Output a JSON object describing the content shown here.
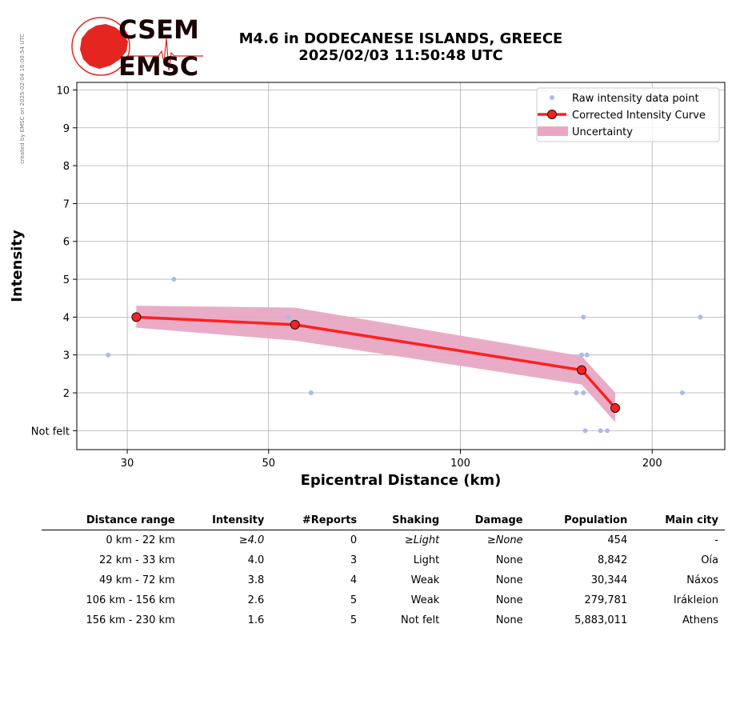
{
  "side_note": "created by EMSC on 2025-02-04 16:00:54 UTC",
  "logo": {
    "line1": "CSEM",
    "line2": "EMSC",
    "accent": "#e52620",
    "text_color": "#1a0505"
  },
  "title": {
    "line1": "M4.6 in DODECANESE ISLANDS, GREECE",
    "line2": "2025/02/03 11:50:48 UTC"
  },
  "chart_data": {
    "type": "scatter",
    "xlabel": "Epicentral Distance (km)",
    "ylabel": "Intensity",
    "x_scale": "log",
    "xlim": [
      25,
      260
    ],
    "ylim": [
      0.5,
      10.2
    ],
    "x_ticks": [
      30,
      50,
      100,
      200
    ],
    "y_ticks": [
      {
        "value": 1,
        "label": "Not felt"
      },
      {
        "value": 2,
        "label": "2"
      },
      {
        "value": 3,
        "label": "3"
      },
      {
        "value": 4,
        "label": "4"
      },
      {
        "value": 5,
        "label": "5"
      },
      {
        "value": 6,
        "label": "6"
      },
      {
        "value": 7,
        "label": "7"
      },
      {
        "value": 8,
        "label": "8"
      },
      {
        "value": 9,
        "label": "9"
      },
      {
        "value": 10,
        "label": "10"
      }
    ],
    "grid": true,
    "legend_position": "top-right",
    "series": [
      {
        "name": "Raw intensity data point",
        "kind": "points",
        "color": "#aabbe8",
        "points": [
          [
            28,
            3
          ],
          [
            35.5,
            5
          ],
          [
            53.7,
            4
          ],
          [
            58.3,
            2
          ],
          [
            152,
            2
          ],
          [
            155,
            3
          ],
          [
            156,
            4
          ],
          [
            156,
            2
          ],
          [
            157,
            1
          ],
          [
            158,
            3
          ],
          [
            166,
            1
          ],
          [
            170,
            1
          ],
          [
            223,
            2
          ],
          [
            238,
            4
          ]
        ]
      },
      {
        "name": "Corrected Intensity Curve",
        "kind": "line",
        "color": "#ff2020",
        "marker_edge": "#111111",
        "points": [
          [
            31,
            4.0
          ],
          [
            55,
            3.8
          ],
          [
            155,
            2.6
          ],
          [
            175,
            1.6
          ]
        ]
      },
      {
        "name": "Uncertainty",
        "kind": "band",
        "color": "#e8a8c4",
        "upper": [
          [
            31,
            4.3
          ],
          [
            55,
            4.25
          ],
          [
            155,
            2.97
          ],
          [
            175,
            2.0
          ]
        ],
        "lower": [
          [
            31,
            3.72
          ],
          [
            55,
            3.38
          ],
          [
            155,
            2.22
          ],
          [
            175,
            1.22
          ]
        ]
      }
    ]
  },
  "table": {
    "headers": [
      "Distance range",
      "Intensity",
      "#Reports",
      "Shaking",
      "Damage",
      "Population",
      "Main city"
    ],
    "rows": [
      {
        "cells": [
          "0 km -   22 km",
          "≥4.0",
          "0",
          "≥Light",
          "≥None",
          "454",
          "-"
        ],
        "italic": [
          1,
          3,
          4
        ]
      },
      {
        "cells": [
          "22 km -   33 km",
          "4.0",
          "3",
          "Light",
          "None",
          "8,842",
          "Oía"
        ],
        "italic": []
      },
      {
        "cells": [
          "49 km -   72 km",
          "3.8",
          "4",
          "Weak",
          "None",
          "30,344",
          "Náxos"
        ],
        "italic": []
      },
      {
        "cells": [
          "106 km -  156 km",
          "2.6",
          "5",
          "Weak",
          "None",
          "279,781",
          "Irákleion"
        ],
        "italic": []
      },
      {
        "cells": [
          "156 km -  230 km",
          "1.6",
          "5",
          "Not felt",
          "None",
          "5,883,011",
          "Athens"
        ],
        "italic": []
      }
    ]
  }
}
